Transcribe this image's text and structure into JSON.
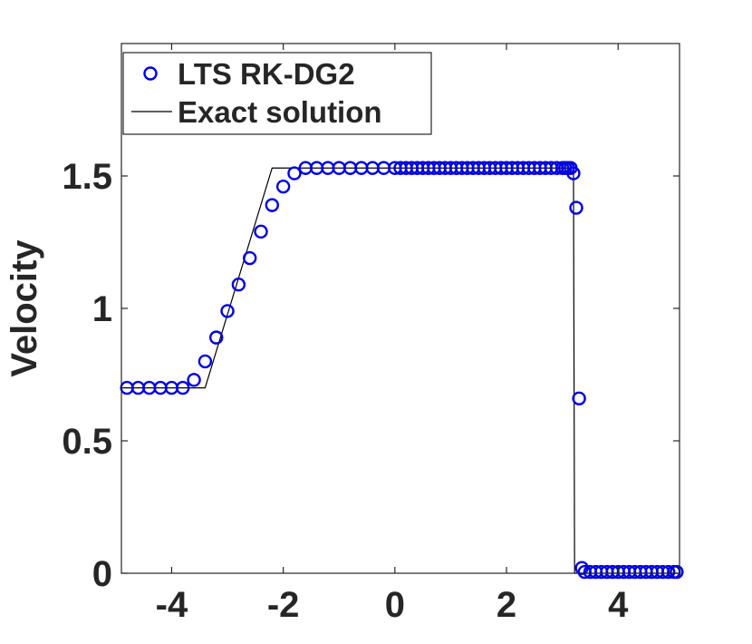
{
  "chart_data": {
    "type": "scatter",
    "title": "",
    "xlabel": "",
    "ylabel": "Velocity",
    "xlim": [
      -4.9,
      5.1
    ],
    "ylim": [
      0,
      2.0
    ],
    "xticks": [
      -4,
      -2,
      0,
      2,
      4
    ],
    "xtick_labels": [
      "-4",
      "-2",
      "0",
      "2",
      "4"
    ],
    "yticks": [
      0,
      0.5,
      1,
      1.5
    ],
    "ytick_labels": [
      "0",
      "0.5",
      "1",
      "1.5"
    ],
    "grid": false,
    "legend_position": "top-left",
    "series": [
      {
        "name": "LTS RK-DG2",
        "marker": "circle",
        "color": "#0000e0",
        "x": [
          -4.8,
          -4.6,
          -4.4,
          -4.2,
          -4.0,
          -3.8,
          -3.6,
          -3.4,
          -3.2,
          -3.0,
          -2.8,
          -2.6,
          -2.4,
          -2.2,
          -2.0,
          -1.8,
          -1.6,
          -1.4,
          -1.2,
          -1.0,
          -0.8,
          -0.6,
          -0.4,
          -0.2,
          0.0,
          0.1,
          0.2,
          0.3,
          0.4,
          0.5,
          0.6,
          0.7,
          0.8,
          0.9,
          1.0,
          1.1,
          1.2,
          1.3,
          1.4,
          1.5,
          1.6,
          1.7,
          1.8,
          1.9,
          2.0,
          2.1,
          2.2,
          2.3,
          2.4,
          2.5,
          2.6,
          2.7,
          2.8,
          2.9,
          3.0,
          3.05,
          3.1,
          3.15,
          3.2,
          3.25,
          3.3,
          3.35,
          3.4,
          3.5,
          3.6,
          3.7,
          3.8,
          3.9,
          4.0,
          4.1,
          4.2,
          4.3,
          4.4,
          4.5,
          4.6,
          4.7,
          4.8,
          4.9,
          5.0,
          5.05
        ],
        "y": [
          0.7,
          0.7,
          0.7,
          0.7,
          0.7,
          0.7,
          0.73,
          0.8,
          0.89,
          0.99,
          1.09,
          1.19,
          1.29,
          1.39,
          1.46,
          1.51,
          1.53,
          1.53,
          1.53,
          1.53,
          1.53,
          1.53,
          1.53,
          1.53,
          1.53,
          1.53,
          1.53,
          1.53,
          1.53,
          1.53,
          1.53,
          1.53,
          1.53,
          1.53,
          1.53,
          1.53,
          1.53,
          1.53,
          1.53,
          1.53,
          1.53,
          1.53,
          1.53,
          1.53,
          1.53,
          1.53,
          1.53,
          1.53,
          1.53,
          1.53,
          1.53,
          1.53,
          1.53,
          1.53,
          1.53,
          1.53,
          1.53,
          1.53,
          1.51,
          1.38,
          0.66,
          0.02,
          0.005,
          0.005,
          0.005,
          0.005,
          0.005,
          0.005,
          0.005,
          0.005,
          0.005,
          0.005,
          0.005,
          0.005,
          0.005,
          0.005,
          0.005,
          0.005,
          0.005,
          0.005
        ]
      },
      {
        "name": "Exact solution",
        "marker": "line",
        "color": "#000000",
        "x": [
          -4.9,
          -3.4,
          -2.2,
          3.2,
          3.22,
          5.1
        ],
        "y": [
          0.7,
          0.7,
          1.53,
          1.53,
          0.0,
          0.0
        ]
      }
    ]
  }
}
